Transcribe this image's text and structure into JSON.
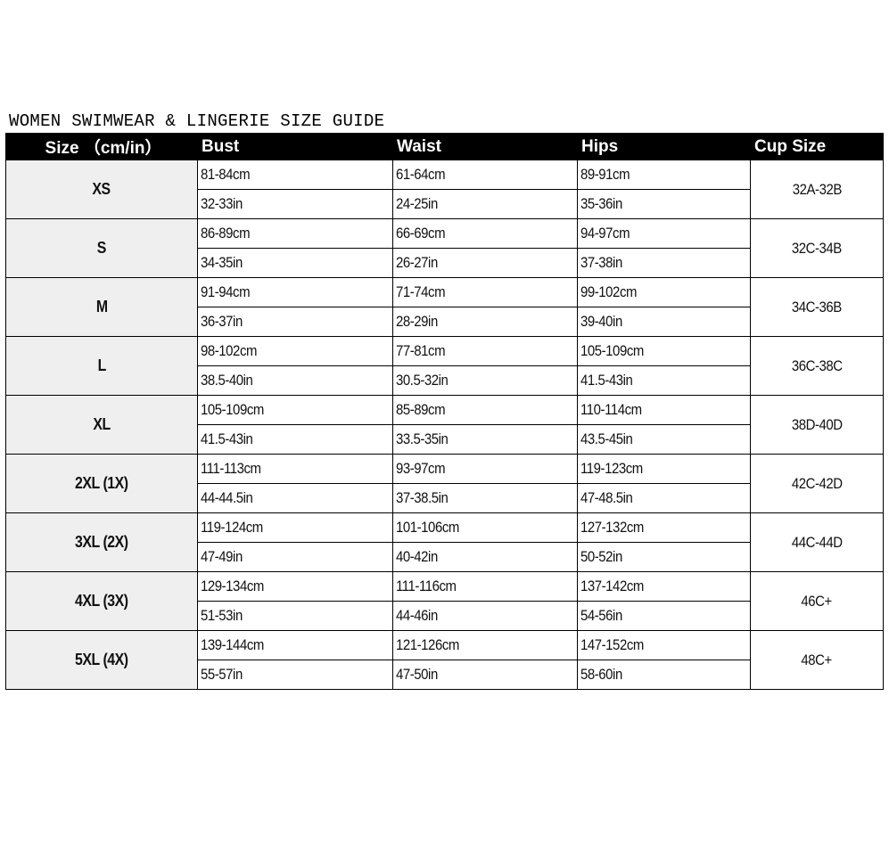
{
  "title": "WOMEN SWIMWEAR & LINGERIE SIZE GUIDE",
  "headers": {
    "size": "Size （cm/in）",
    "bust": "Bust",
    "waist": "Waist",
    "hips": "Hips",
    "cup": "Cup Size"
  },
  "rows": [
    {
      "size": "XS",
      "bust_cm": "81-84cm",
      "bust_in": "32-33in",
      "waist_cm": "61-64cm",
      "waist_in": "24-25in",
      "hips_cm": "89-91cm",
      "hips_in": "35-36in",
      "cup": "32A-32B"
    },
    {
      "size": "S",
      "bust_cm": "86-89cm",
      "bust_in": "34-35in",
      "waist_cm": "66-69cm",
      "waist_in": "26-27in",
      "hips_cm": "94-97cm",
      "hips_in": "37-38in",
      "cup": "32C-34B"
    },
    {
      "size": "M",
      "bust_cm": "91-94cm",
      "bust_in": "36-37in",
      "waist_cm": "71-74cm",
      "waist_in": "28-29in",
      "hips_cm": "99-102cm",
      "hips_in": "39-40in",
      "cup": "34C-36B"
    },
    {
      "size": "L",
      "bust_cm": "98-102cm",
      "bust_in": "38.5-40in",
      "waist_cm": "77-81cm",
      "waist_in": "30.5-32in",
      "hips_cm": "105-109cm",
      "hips_in": "41.5-43in",
      "cup": "36C-38C"
    },
    {
      "size": "XL",
      "bust_cm": "105-109cm",
      "bust_in": "41.5-43in",
      "waist_cm": "85-89cm",
      "waist_in": "33.5-35in",
      "hips_cm": "110-114cm",
      "hips_in": "43.5-45in",
      "cup": "38D-40D"
    },
    {
      "size": "2XL (1X)",
      "bust_cm": "111-113cm",
      "bust_in": "44-44.5in",
      "waist_cm": "93-97cm",
      "waist_in": "37-38.5in",
      "hips_cm": "119-123cm",
      "hips_in": "47-48.5in",
      "cup": "42C-42D"
    },
    {
      "size": "3XL (2X)",
      "bust_cm": "119-124cm",
      "bust_in": "47-49in",
      "waist_cm": "101-106cm",
      "waist_in": "40-42in",
      "hips_cm": "127-132cm",
      "hips_in": "50-52in",
      "cup": "44C-44D"
    },
    {
      "size": "4XL (3X)",
      "bust_cm": "129-134cm",
      "bust_in": "51-53in",
      "waist_cm": "111-116cm",
      "waist_in": "44-46in",
      "hips_cm": "137-142cm",
      "hips_in": "54-56in",
      "cup": "46C+"
    },
    {
      "size": "5XL (4X)",
      "bust_cm": "139-144cm",
      "bust_in": "55-57in",
      "waist_cm": "121-126cm",
      "waist_in": "47-50in",
      "hips_cm": "147-152cm",
      "hips_in": "58-60in",
      "cup": "48C+"
    }
  ]
}
